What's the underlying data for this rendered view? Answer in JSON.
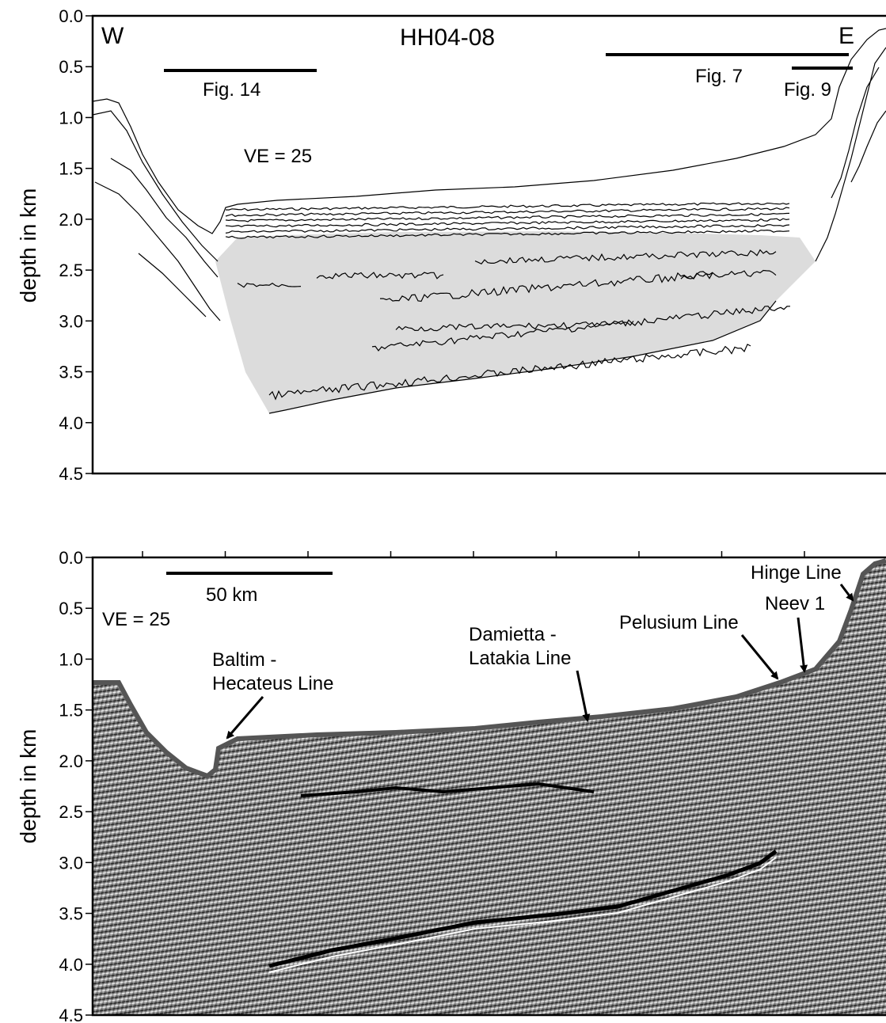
{
  "top_panel": {
    "title": "HH04-08",
    "west_label": "W",
    "east_label": "E",
    "ve_label": "VE = 25",
    "fig_refs": [
      {
        "label": "Fig. 14"
      },
      {
        "label": "Fig. 7"
      },
      {
        "label": "Fig. 9"
      }
    ],
    "ylabel": "depth in km",
    "yticks": [
      "0.0",
      "0.5",
      "1.0",
      "1.5",
      "2.0",
      "2.5",
      "3.0",
      "3.5",
      "4.0",
      "4.5"
    ],
    "fill_color": "#dcdcdc"
  },
  "bottom_panel": {
    "ve_label": "VE = 25",
    "scale_label": "50 km",
    "ylabel": "depth in km",
    "yticks": [
      "0.0",
      "0.5",
      "1.0",
      "1.5",
      "2.0",
      "2.5",
      "3.0",
      "3.5",
      "4.0",
      "4.5"
    ],
    "annotations": {
      "baltim_1": "Baltim -",
      "baltim_2": "Hecateus Line",
      "damietta_1": "Damietta -",
      "damietta_2": "Latakia Line",
      "pelusium": "Pelusium Line",
      "neev": "Neev 1",
      "hinge": "Hinge Line"
    }
  }
}
